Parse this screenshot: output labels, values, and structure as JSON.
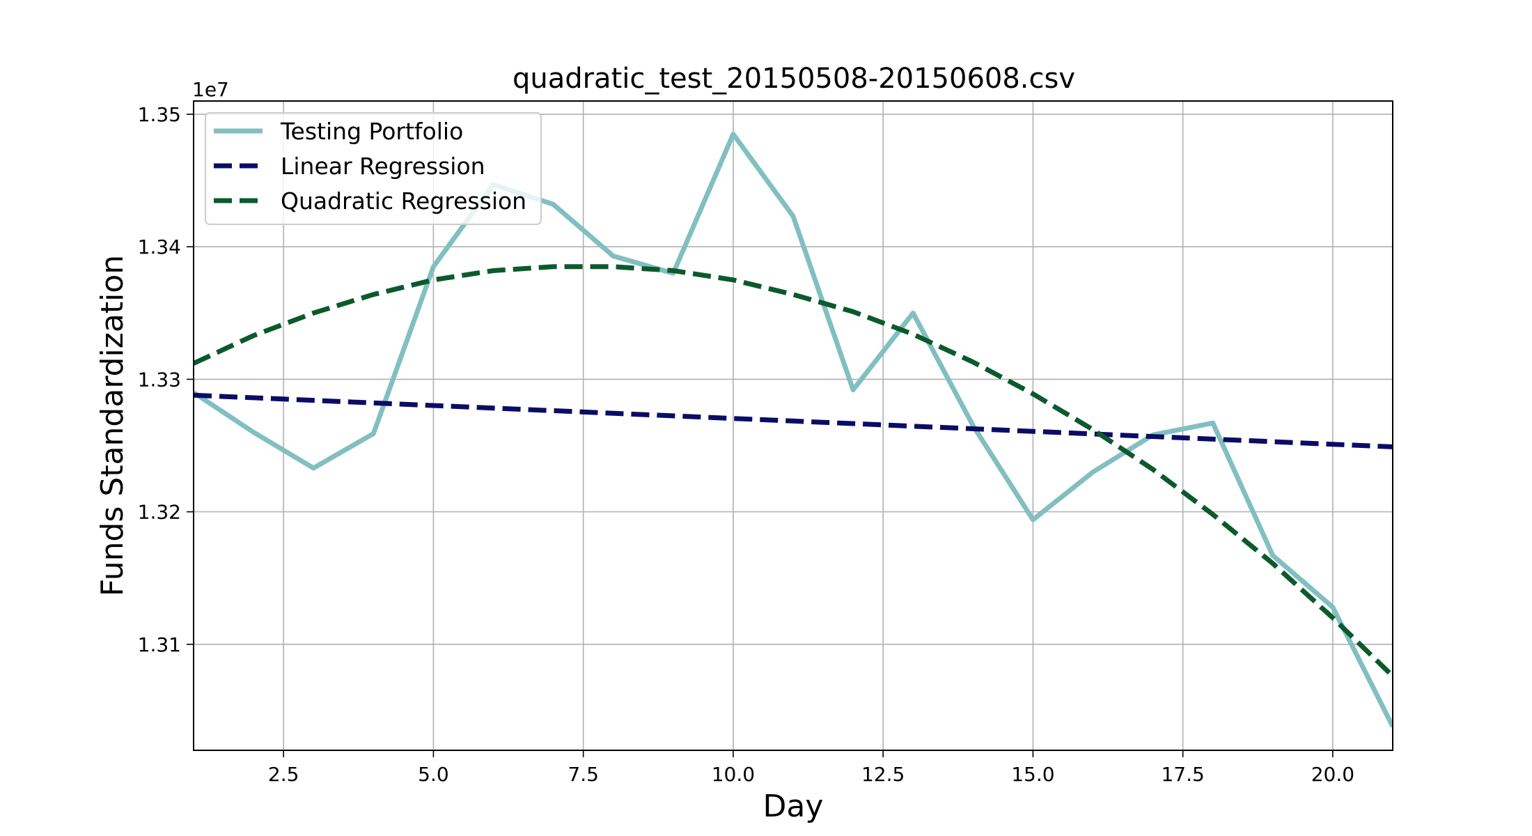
{
  "chart_data": {
    "type": "line",
    "title": "quadratic_test_20150508-20150608.csv",
    "xlabel": "Day",
    "ylabel": "Funds Standardization",
    "y_offset_label": "1e7",
    "xlim": [
      1,
      21
    ],
    "ylim": [
      13.02,
      13.51
    ],
    "x_ticks": [
      2.5,
      5.0,
      7.5,
      10.0,
      12.5,
      15.0,
      17.5,
      20.0
    ],
    "x_tick_labels": [
      "2.5",
      "5.0",
      "7.5",
      "10.0",
      "12.5",
      "15.0",
      "17.5",
      "20.0"
    ],
    "y_ticks": [
      13.1,
      13.2,
      13.3,
      13.4,
      13.5
    ],
    "y_tick_labels": [
      "1.31",
      "1.32",
      "1.33",
      "1.34",
      "1.35"
    ],
    "grid": true,
    "legend_position": "top-left",
    "series": [
      {
        "name": "Testing Portfolio",
        "style": "solid",
        "color": "#82bfc0",
        "x": [
          1,
          2,
          3,
          4,
          5,
          6,
          7,
          8,
          9,
          10,
          11,
          12,
          13,
          14,
          15,
          16,
          17,
          18,
          19,
          20,
          21
        ],
        "values": [
          13.29,
          13.26,
          13.233,
          13.259,
          13.385,
          13.447,
          13.432,
          13.393,
          13.38,
          13.485,
          13.423,
          13.292,
          13.35,
          13.265,
          13.194,
          13.23,
          13.258,
          13.267,
          13.167,
          13.128,
          13.038
        ]
      },
      {
        "name": "Linear Regression",
        "style": "dashed",
        "color": "#0b0c66",
        "x": [
          1,
          21
        ],
        "values": [
          13.288,
          13.249
        ]
      },
      {
        "name": "Quadratic Regression",
        "style": "dashed",
        "color": "#0b5a2c",
        "x": [
          1,
          2,
          3,
          4,
          5,
          6,
          7,
          8,
          9,
          10,
          11,
          12,
          13,
          14,
          15,
          16,
          17,
          18,
          19,
          20,
          21
        ],
        "values": [
          13.312,
          13.333,
          13.35,
          13.364,
          13.375,
          13.382,
          13.385,
          13.385,
          13.382,
          13.375,
          13.364,
          13.351,
          13.334,
          13.313,
          13.289,
          13.262,
          13.232,
          13.198,
          13.161,
          13.12,
          13.076
        ]
      }
    ]
  }
}
